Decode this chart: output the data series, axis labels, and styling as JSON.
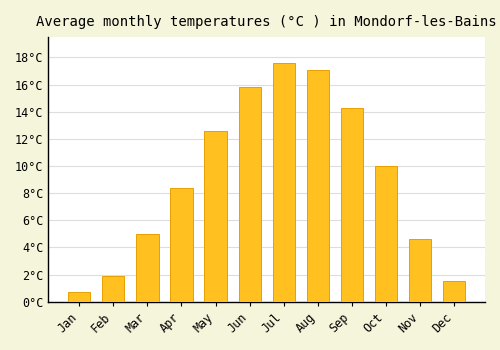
{
  "months": [
    "Jan",
    "Feb",
    "Mar",
    "Apr",
    "May",
    "Jun",
    "Jul",
    "Aug",
    "Sep",
    "Oct",
    "Nov",
    "Dec"
  ],
  "values": [
    0.7,
    1.9,
    5.0,
    8.4,
    12.6,
    15.8,
    17.6,
    17.1,
    14.3,
    10.0,
    4.6,
    1.5
  ],
  "bar_color": "#FFC020",
  "bar_edge_color": "#E8A000",
  "title": "Average monthly temperatures (°C ) in Mondorf-les-Bains",
  "ylim": [
    0,
    19.5
  ],
  "yticks": [
    0,
    2,
    4,
    6,
    8,
    10,
    12,
    14,
    16,
    18
  ],
  "ytick_labels": [
    "0°C",
    "2°C",
    "4°C",
    "6°C",
    "8°C",
    "10°C",
    "12°C",
    "14°C",
    "16°C",
    "18°C"
  ],
  "plot_bg_color": "#FFFFFF",
  "outer_bg_color": "#F5F5DC",
  "grid_color": "#DDDDDD",
  "title_fontsize": 10,
  "tick_fontsize": 8.5,
  "font_family": "monospace",
  "bar_width": 0.65
}
